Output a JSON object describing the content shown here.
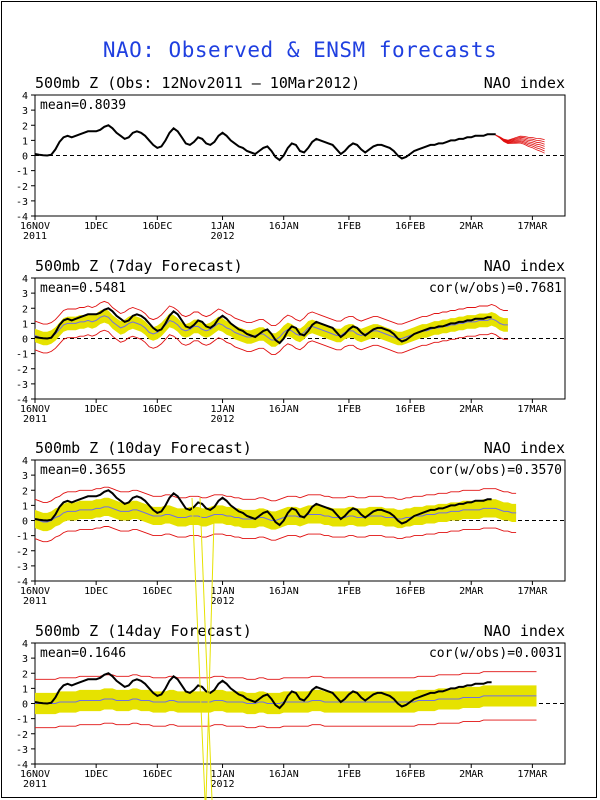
{
  "page": {
    "title": "NAO: Observed & ENSM forecasts"
  },
  "colors": {
    "observed": "#000000",
    "ensemble": "#e01010",
    "spread": "#e6e200",
    "ensemble_mean": "#7070e0",
    "title": "#1f3fe0"
  },
  "x_axis": {
    "ticks": [
      {
        "day": 0,
        "label": "16NOV",
        "year": "2011"
      },
      {
        "day": 15,
        "label": "1DEC",
        "year": ""
      },
      {
        "day": 30,
        "label": "16DEC",
        "year": ""
      },
      {
        "day": 46,
        "label": "1JAN",
        "year": "2012"
      },
      {
        "day": 61,
        "label": "16JAN",
        "year": ""
      },
      {
        "day": 77,
        "label": "1FEB",
        "year": ""
      },
      {
        "day": 92,
        "label": "16FEB",
        "year": ""
      },
      {
        "day": 107,
        "label": "2MAR",
        "year": ""
      },
      {
        "day": 122,
        "label": "17MAR",
        "year": ""
      }
    ]
  },
  "chart_data": [
    {
      "type": "line",
      "title": "500mb Z (Obs: 12Nov2011 – 10Mar2012)",
      "right_label": "NAO index",
      "mean_text": "mean=0.8039",
      "cor_text": "",
      "ylim": [
        -4,
        4
      ],
      "yticks": [
        "4",
        "3",
        "2",
        "1",
        "0",
        "-1",
        "-2",
        "-3",
        "-4"
      ],
      "series": {
        "observed": [
          0.1,
          0.05,
          0.02,
          0.0,
          0.05,
          0.4,
          0.9,
          1.2,
          1.3,
          1.2,
          1.3,
          1.4,
          1.5,
          1.6,
          1.6,
          1.6,
          1.7,
          1.9,
          2.0,
          1.8,
          1.5,
          1.3,
          1.1,
          1.2,
          1.5,
          1.6,
          1.5,
          1.3,
          1.0,
          0.7,
          0.5,
          0.6,
          1.0,
          1.5,
          1.8,
          1.6,
          1.2,
          0.8,
          0.7,
          0.9,
          1.2,
          1.1,
          0.8,
          0.7,
          0.9,
          1.3,
          1.5,
          1.3,
          1.0,
          0.8,
          0.6,
          0.5,
          0.3,
          0.2,
          0.1,
          0.3,
          0.5,
          0.6,
          0.3,
          -0.1,
          -0.3,
          0.0,
          0.5,
          0.8,
          0.7,
          0.3,
          0.2,
          0.5,
          0.9,
          1.1,
          1.0,
          0.9,
          0.8,
          0.7,
          0.4,
          0.1,
          0.3,
          0.6,
          0.8,
          0.7,
          0.4,
          0.2,
          0.4,
          0.6,
          0.7,
          0.7,
          0.6,
          0.5,
          0.3,
          0.0,
          -0.2,
          -0.1,
          0.1,
          0.3,
          0.4,
          0.5,
          0.6,
          0.7,
          0.7,
          0.8,
          0.8,
          0.9,
          1.0,
          1.0,
          1.1,
          1.1,
          1.2,
          1.2,
          1.3,
          1.3,
          1.3,
          1.4,
          1.4,
          1.4
        ],
        "forecast_start": 113,
        "forecast_mean": [
          1.35,
          1.2,
          1.0,
          0.9,
          0.95,
          1.0,
          1.05,
          1.0,
          0.9,
          0.85,
          0.75,
          0.7,
          0.6
        ],
        "forecast_spread": 0.45
      }
    },
    {
      "type": "line",
      "title": "500mb Z (7day Forecast)",
      "right_label": "NAO index",
      "mean_text": "mean=0.5481",
      "cor_text": "cor(w/obs)=0.7681",
      "ylim": [
        -4,
        4
      ],
      "yticks": [
        "4",
        "3",
        "2",
        "1",
        "0",
        "-1",
        "-2",
        "-3",
        "-4"
      ],
      "series": {
        "forecast_mean": [
          0.2,
          0.1,
          0.0,
          0.0,
          0.1,
          0.3,
          0.6,
          0.9,
          1.0,
          1.0,
          1.0,
          1.1,
          1.1,
          1.2,
          1.1,
          1.2,
          1.4,
          1.5,
          1.4,
          1.1,
          0.9,
          0.7,
          0.8,
          1.0,
          1.1,
          1.0,
          0.9,
          0.7,
          0.4,
          0.3,
          0.4,
          0.6,
          0.9,
          1.2,
          1.1,
          0.9,
          0.6,
          0.5,
          0.6,
          0.8,
          0.8,
          0.6,
          0.5,
          0.6,
          0.8,
          1.0,
          0.9,
          0.7,
          0.6,
          0.4,
          0.3,
          0.2,
          0.1,
          0.1,
          0.2,
          0.3,
          0.3,
          0.1,
          -0.1,
          -0.1,
          0.1,
          0.4,
          0.6,
          0.5,
          0.3,
          0.2,
          0.4,
          0.7,
          0.8,
          0.7,
          0.6,
          0.5,
          0.4,
          0.3,
          0.2,
          0.2,
          0.4,
          0.5,
          0.5,
          0.3,
          0.2,
          0.3,
          0.4,
          0.5,
          0.5,
          0.4,
          0.3,
          0.2,
          0.1,
          0.0,
          0.0,
          0.1,
          0.2,
          0.3,
          0.4,
          0.5,
          0.5,
          0.6,
          0.7,
          0.7,
          0.8,
          0.8,
          0.9,
          0.9,
          1.0,
          1.0,
          1.1,
          1.1,
          1.1,
          1.2,
          1.2,
          1.2,
          1.3,
          1.2,
          1.0,
          0.9,
          0.9
        ],
        "spread_half": 0.45,
        "red_half": 0.95,
        "obs_length": 113
      }
    },
    {
      "type": "line",
      "title": "500mb Z (10day Forecast)",
      "right_label": "NAO index",
      "mean_text": "mean=0.3655",
      "cor_text": "cor(w/obs)=0.3570",
      "ylim": [
        -4,
        4
      ],
      "yticks": [
        "4",
        "3",
        "2",
        "1",
        "0",
        "-1",
        "-2",
        "-3",
        "-4"
      ],
      "series": {
        "forecast_mean": [
          0.1,
          0.0,
          -0.1,
          -0.1,
          0.0,
          0.2,
          0.3,
          0.5,
          0.6,
          0.6,
          0.6,
          0.7,
          0.7,
          0.7,
          0.7,
          0.8,
          0.8,
          0.9,
          0.9,
          0.8,
          0.7,
          0.6,
          0.6,
          0.6,
          0.7,
          0.7,
          0.6,
          0.5,
          0.4,
          0.3,
          0.3,
          0.3,
          0.4,
          0.4,
          0.3,
          0.2,
          0.2,
          0.2,
          0.3,
          0.3,
          0.3,
          0.2,
          0.2,
          0.3,
          0.4,
          0.4,
          0.4,
          0.3,
          0.3,
          0.2,
          0.2,
          0.1,
          0.1,
          0.1,
          0.1,
          0.2,
          0.2,
          0.1,
          0.0,
          0.0,
          0.1,
          0.2,
          0.3,
          0.3,
          0.3,
          0.2,
          0.3,
          0.4,
          0.4,
          0.4,
          0.4,
          0.3,
          0.3,
          0.2,
          0.2,
          0.2,
          0.2,
          0.3,
          0.3,
          0.2,
          0.2,
          0.2,
          0.3,
          0.3,
          0.3,
          0.3,
          0.2,
          0.2,
          0.2,
          0.1,
          0.1,
          0.2,
          0.2,
          0.3,
          0.3,
          0.3,
          0.4,
          0.4,
          0.4,
          0.5,
          0.5,
          0.5,
          0.6,
          0.6,
          0.6,
          0.7,
          0.7,
          0.7,
          0.7,
          0.7,
          0.8,
          0.8,
          0.8,
          0.8,
          0.7,
          0.6,
          0.6,
          0.5,
          0.5
        ],
        "spread_half": 0.6,
        "red_half": 1.3,
        "obs_length": 113
      }
    },
    {
      "type": "line",
      "title": "500mb Z (14day Forecast)",
      "right_label": "NAO index",
      "mean_text": "mean=0.1646",
      "cor_text": "cor(w/obs)=0.0031",
      "ylim": [
        -4,
        4
      ],
      "yticks": [
        "4",
        "3",
        "2",
        "1",
        "0",
        "-1",
        "-2",
        "-3",
        "-4"
      ],
      "series": {
        "forecast_mean": [
          0.0,
          0.0,
          0.0,
          0.0,
          0.0,
          0.0,
          0.1,
          0.1,
          0.1,
          0.1,
          0.1,
          0.2,
          0.2,
          0.2,
          0.2,
          0.2,
          0.2,
          0.3,
          0.3,
          0.3,
          0.2,
          0.2,
          0.2,
          0.2,
          0.3,
          0.3,
          0.2,
          0.2,
          0.2,
          0.1,
          0.1,
          0.1,
          0.1,
          0.2,
          0.2,
          0.1,
          0.1,
          0.1,
          0.1,
          0.1,
          0.1,
          0.1,
          0.1,
          0.1,
          0.2,
          0.2,
          0.2,
          0.1,
          0.1,
          0.1,
          0.1,
          0.1,
          0.0,
          0.0,
          0.0,
          0.1,
          0.1,
          0.0,
          0.0,
          0.0,
          0.0,
          0.1,
          0.1,
          0.1,
          0.1,
          0.1,
          0.1,
          0.1,
          0.2,
          0.2,
          0.2,
          0.1,
          0.1,
          0.1,
          0.1,
          0.1,
          0.1,
          0.1,
          0.1,
          0.1,
          0.1,
          0.1,
          0.1,
          0.1,
          0.1,
          0.1,
          0.1,
          0.1,
          0.1,
          0.1,
          0.1,
          0.1,
          0.1,
          0.1,
          0.2,
          0.2,
          0.2,
          0.2,
          0.2,
          0.3,
          0.3,
          0.3,
          0.3,
          0.3,
          0.3,
          0.4,
          0.4,
          0.4,
          0.4,
          0.4,
          0.5,
          0.5,
          0.5,
          0.5,
          0.5,
          0.5,
          0.5,
          0.5,
          0.5,
          0.5,
          0.5,
          0.5,
          0.5,
          0.5
        ],
        "spread_half": 0.7,
        "red_half": 1.6,
        "obs_length": 113
      }
    }
  ]
}
